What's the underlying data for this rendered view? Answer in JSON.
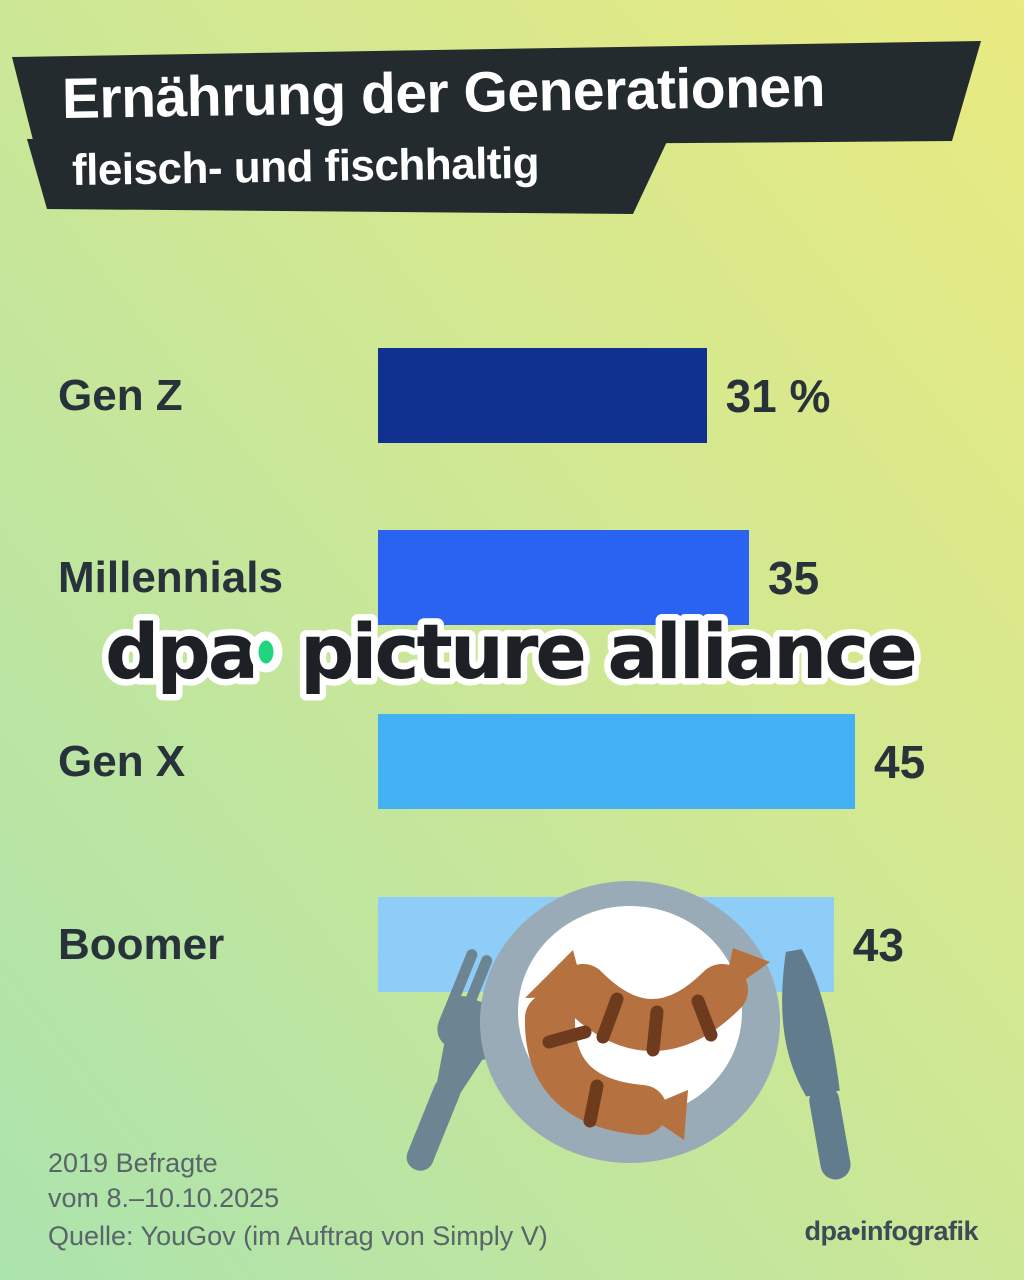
{
  "header": {
    "title": "Ernährung der Generationen",
    "subtitle": "fleisch- und fischhaltig",
    "banner_color": "#242b2f",
    "text_color": "#ffffff"
  },
  "chart_data": {
    "type": "bar",
    "orientation": "horizontal",
    "title": "Ernährung der Generationen — fleisch- und fischhaltig",
    "unit": "%",
    "categories": [
      "Gen Z",
      "Millennials",
      "Gen X",
      "Boomer"
    ],
    "values": [
      31,
      35,
      45,
      43
    ],
    "value_labels": [
      "31 %",
      "35",
      "45",
      "43"
    ],
    "bar_colors": [
      "#10318f",
      "#2a62f2",
      "#44b1f4",
      "#8ecdf8"
    ],
    "xlim": [
      0,
      50
    ],
    "grid": false,
    "legend": false
  },
  "watermark": {
    "left": "dpa",
    "right": "picture alliance",
    "dot_color": "#1fd57e",
    "text_color": "#1d2125",
    "outline_color": "#ffffff"
  },
  "illustration": {
    "name": "plate with sausages, fork and knife",
    "plate_rim_color": "#9aabb8",
    "plate_color": "#ffffff",
    "sausage_color": "#b5713f",
    "grill_mark_color": "#6f3b1f",
    "cutlery_color": "#6d8492"
  },
  "footer": {
    "note_line1": "2019 Befragte",
    "note_line2": "vom 8.–10.10.2025",
    "source": "Quelle: YouGov (im Auftrag von Simply V)",
    "brand": "dpa•infografik"
  }
}
